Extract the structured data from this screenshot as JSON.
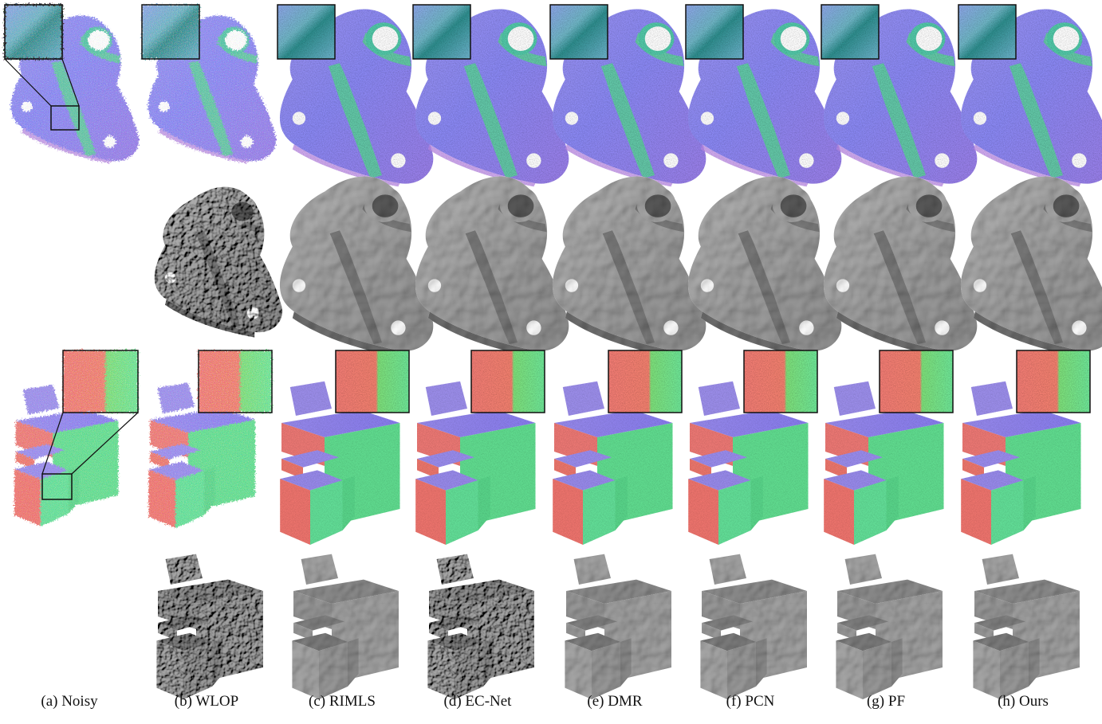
{
  "figure": {
    "columns": [
      {
        "id": "noisy",
        "caption": "(a) Noisy"
      },
      {
        "id": "wlop",
        "caption": "(b) WLOP"
      },
      {
        "id": "rimls",
        "caption": "(c) RIMLS"
      },
      {
        "id": "ecnet",
        "caption": "(d) EC-Net"
      },
      {
        "id": "dmr",
        "caption": "(e) DMR"
      },
      {
        "id": "pcn",
        "caption": "(f) PCN"
      },
      {
        "id": "pf",
        "caption": "(g) PF"
      },
      {
        "id": "ours",
        "caption": "(h) Ours"
      }
    ],
    "rows": [
      {
        "id": "bracket-normals",
        "kind": "point-cloud-normal-map",
        "model": "bracket"
      },
      {
        "id": "bracket-mesh",
        "kind": "reconstructed-mesh",
        "model": "bracket"
      },
      {
        "id": "block-normals",
        "kind": "point-cloud-normal-map",
        "model": "stepped-block"
      },
      {
        "id": "block-mesh",
        "kind": "reconstructed-mesh",
        "model": "stepped-block"
      }
    ],
    "colors": {
      "normal_blue": "#8c88f2",
      "normal_green": "#58e08c",
      "normal_red": "#f27872",
      "normal_purple": "#b070e0",
      "mesh_gray": "#9a9a9a",
      "mesh_dark": "#6e6e6e",
      "background": "#ffffff"
    }
  }
}
